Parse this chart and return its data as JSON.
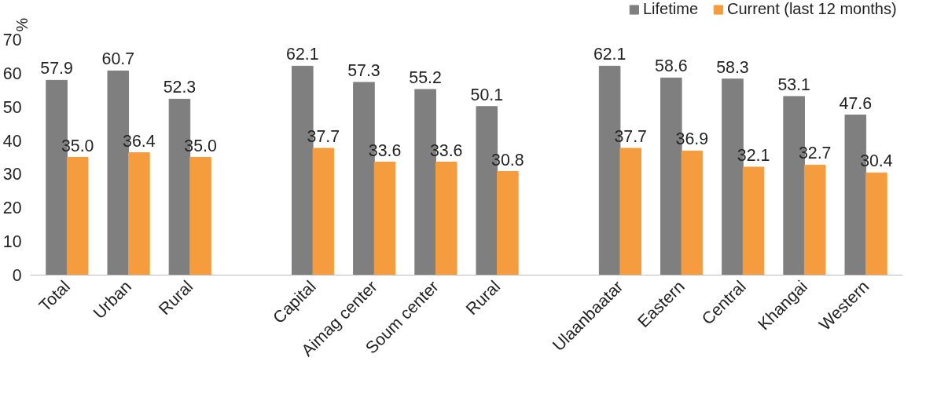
{
  "chart_data": {
    "type": "bar",
    "ylabel": "%",
    "categories": [
      "Total",
      "Urban",
      "Rural",
      null,
      "Capital",
      "Aimag center",
      "Soum center",
      "Rural",
      null,
      "Ulaanbaatar",
      "Eastern",
      "Central",
      "Khangai",
      "Western"
    ],
    "series": [
      {
        "name": "Lifetime",
        "color": "#7f7f80",
        "values": [
          57.9,
          60.7,
          52.3,
          null,
          62.1,
          57.3,
          55.2,
          50.1,
          null,
          62.1,
          58.6,
          58.3,
          53.1,
          47.6
        ],
        "value_labels": [
          "57.9",
          "60.7",
          "52.3",
          null,
          "62.1",
          "57.3",
          "55.2",
          "50.1",
          null,
          "62.1",
          "58.6",
          "58.3",
          "53.1",
          "47.6"
        ]
      },
      {
        "name": "Current (last 12 months)",
        "color": "#f59d3e",
        "values": [
          35.0,
          36.4,
          35.0,
          null,
          37.7,
          33.6,
          33.6,
          30.8,
          null,
          37.7,
          36.9,
          32.1,
          32.7,
          30.4
        ],
        "value_labels": [
          "35.0",
          "36.4",
          "35.0",
          null,
          "37.7",
          "33.6",
          "33.6",
          "30.8",
          null,
          "37.7",
          "36.9",
          "32.1",
          "32.7",
          "30.4"
        ]
      }
    ],
    "ylim": [
      0,
      70
    ],
    "yticks": [
      0,
      10,
      20,
      30,
      40,
      50,
      60,
      70
    ],
    "grid": false,
    "legend": "top right"
  }
}
